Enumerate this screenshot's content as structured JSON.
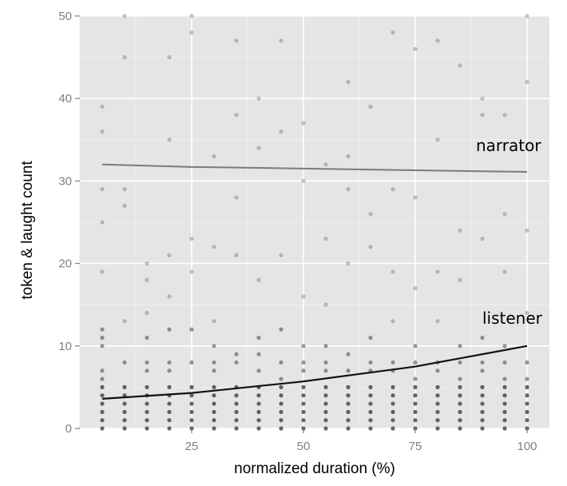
{
  "chart_data": {
    "type": "scatter",
    "title": "",
    "xlabel": "normalized duration  (%)",
    "ylabel": "token & laught count",
    "xlim": [
      0,
      105
    ],
    "ylim": [
      0,
      50
    ],
    "x_ticks": [
      25,
      50,
      75,
      100
    ],
    "y_ticks": [
      0,
      10,
      20,
      30,
      40,
      50
    ],
    "grid": true,
    "panel_background": "#e5e5e5",
    "grid_color": "#ffffff",
    "point_color": "#333333",
    "series": [
      {
        "kind": "points",
        "description_color": "#555555",
        "x": [
          5,
          5,
          5,
          5,
          5,
          5,
          5,
          5,
          5,
          5,
          5,
          5,
          5,
          5,
          5,
          5,
          10,
          10,
          10,
          10,
          10,
          10,
          10,
          10,
          10,
          10,
          10,
          10,
          15,
          15,
          15,
          15,
          15,
          15,
          15,
          15,
          15,
          15,
          15,
          15,
          20,
          20,
          20,
          20,
          20,
          20,
          20,
          20,
          20,
          20,
          20,
          20,
          20,
          25,
          25,
          25,
          25,
          25,
          25,
          25,
          25,
          25,
          25,
          25,
          25,
          30,
          30,
          30,
          30,
          30,
          30,
          30,
          30,
          30,
          30,
          30,
          30,
          35,
          35,
          35,
          35,
          35,
          35,
          35,
          35,
          35,
          35,
          35,
          35,
          40,
          40,
          40,
          40,
          40,
          40,
          40,
          40,
          40,
          40,
          40,
          40,
          45,
          45,
          45,
          45,
          45,
          45,
          45,
          45,
          45,
          45,
          45,
          45,
          50,
          50,
          50,
          50,
          50,
          50,
          50,
          50,
          50,
          50,
          50,
          50,
          55,
          55,
          55,
          55,
          55,
          55,
          55,
          55,
          55,
          55,
          55,
          55,
          60,
          60,
          60,
          60,
          60,
          60,
          60,
          60,
          60,
          60,
          60,
          60,
          65,
          65,
          65,
          65,
          65,
          65,
          65,
          65,
          65,
          65,
          65,
          65,
          70,
          70,
          70,
          70,
          70,
          70,
          70,
          70,
          70,
          70,
          70,
          70,
          75,
          75,
          75,
          75,
          75,
          75,
          75,
          75,
          75,
          75,
          75,
          75,
          80,
          80,
          80,
          80,
          80,
          80,
          80,
          80,
          80,
          80,
          80,
          80,
          85,
          85,
          85,
          85,
          85,
          85,
          85,
          85,
          85,
          85,
          85,
          85,
          90,
          90,
          90,
          90,
          90,
          90,
          90,
          90,
          90,
          90,
          90,
          90,
          95,
          95,
          95,
          95,
          95,
          95,
          95,
          95,
          95,
          95,
          95,
          95,
          100,
          100,
          100,
          100,
          100,
          100,
          100,
          100,
          100,
          100,
          100,
          100
        ],
        "y": [
          0,
          1,
          2,
          3,
          4,
          5,
          6,
          7,
          10,
          11,
          12,
          19,
          25,
          29,
          36,
          39,
          0,
          1,
          2,
          3,
          4,
          5,
          8,
          13,
          27,
          29,
          45,
          50,
          0,
          1,
          2,
          3,
          4,
          5,
          7,
          8,
          11,
          14,
          18,
          20,
          0,
          1,
          2,
          3,
          4,
          5,
          7,
          8,
          12,
          16,
          21,
          35,
          45,
          0,
          1,
          2,
          3,
          4,
          5,
          8,
          12,
          19,
          23,
          48,
          50,
          0,
          1,
          2,
          3,
          4,
          5,
          7,
          8,
          10,
          13,
          22,
          33,
          0,
          1,
          2,
          3,
          4,
          5,
          8,
          9,
          21,
          28,
          38,
          47,
          0,
          1,
          2,
          3,
          4,
          5,
          7,
          9,
          11,
          18,
          34,
          40,
          0,
          1,
          2,
          3,
          4,
          5,
          6,
          8,
          12,
          21,
          36,
          47,
          0,
          1,
          2,
          3,
          4,
          5,
          7,
          8,
          10,
          16,
          30,
          37,
          0,
          1,
          2,
          3,
          4,
          5,
          7,
          8,
          10,
          15,
          23,
          32,
          0,
          1,
          2,
          3,
          4,
          5,
          7,
          9,
          20,
          29,
          33,
          42,
          0,
          1,
          2,
          3,
          4,
          5,
          7,
          8,
          11,
          22,
          26,
          39,
          0,
          1,
          2,
          3,
          4,
          5,
          7,
          8,
          13,
          19,
          29,
          48,
          0,
          1,
          2,
          3,
          4,
          5,
          6,
          8,
          10,
          17,
          28,
          46,
          0,
          1,
          2,
          3,
          4,
          5,
          7,
          8,
          13,
          19,
          35,
          47,
          0,
          1,
          2,
          3,
          4,
          5,
          6,
          8,
          10,
          18,
          24,
          44,
          0,
          1,
          2,
          3,
          4,
          5,
          7,
          8,
          11,
          23,
          38,
          40,
          0,
          1,
          2,
          3,
          4,
          5,
          6,
          8,
          10,
          19,
          26,
          38,
          0,
          1,
          2,
          3,
          4,
          5,
          6,
          8,
          14,
          24,
          42,
          50
        ]
      },
      {
        "kind": "line",
        "label": "narrator",
        "color": "#7a7a7a",
        "x": [
          5,
          25,
          50,
          75,
          100
        ],
        "y": [
          32,
          31.7,
          31.5,
          31.3,
          31.1
        ]
      },
      {
        "kind": "line",
        "label": "listener",
        "color": "#111111",
        "x": [
          5,
          25,
          50,
          75,
          100
        ],
        "y": [
          3.6,
          4.3,
          5.7,
          7.5,
          10
        ]
      }
    ]
  }
}
